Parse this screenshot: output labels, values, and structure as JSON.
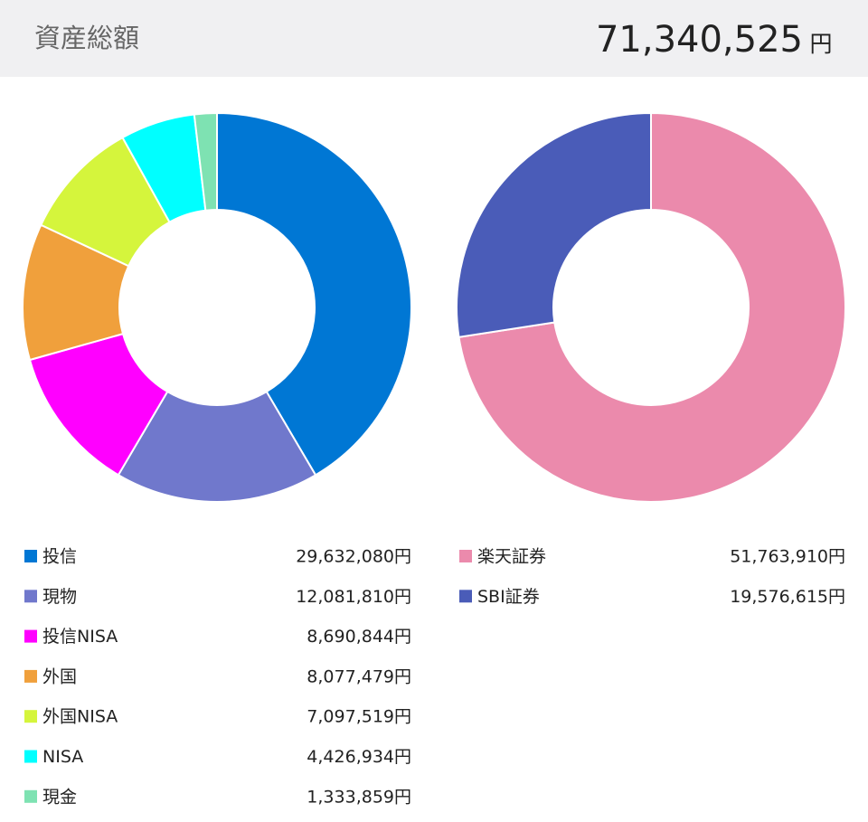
{
  "header": {
    "title": "資産総額",
    "total": "71,340,525",
    "unit": "円"
  },
  "chart_data": [
    {
      "type": "pie",
      "categories": [
        "投信",
        "現物",
        "投信NISA",
        "外国",
        "外国NISA",
        "NISA",
        "現金"
      ],
      "values": [
        29632080,
        12081810,
        8690844,
        8077479,
        7097519,
        4426934,
        1333859
      ],
      "value_labels": [
        "29,632,080円",
        "12,081,810円",
        "8,690,844円",
        "8,077,479円",
        "7,097,519円",
        "4,426,934円",
        "1,333,859円"
      ],
      "colors": [
        "#0077d4",
        "#7078cc",
        "#ff00ff",
        "#f0a03c",
        "#d5f53c",
        "#00ffff",
        "#7ee2b2"
      ]
    },
    {
      "type": "pie",
      "categories": [
        "楽天証券",
        "SBI証券"
      ],
      "values": [
        51763910,
        19576615
      ],
      "value_labels": [
        "51,763,910円",
        "19,576,615円"
      ],
      "colors": [
        "#eb8aac",
        "#4a5cb8"
      ]
    }
  ]
}
